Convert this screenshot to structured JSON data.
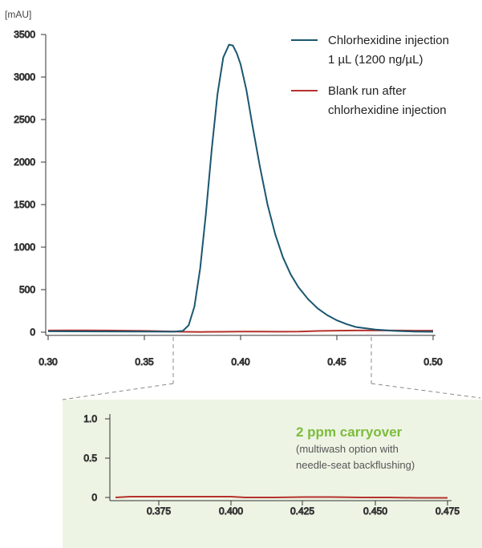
{
  "colors": {
    "injection": "#1b5670",
    "blank": "#b5322b",
    "callout_title": "#7cbc3d",
    "inset_bg": "#eef4e4",
    "axis": "#333333",
    "connector": "#888888"
  },
  "chart_data": [
    {
      "type": "line",
      "title": "",
      "unit_label": "[mAU]",
      "xlim": [
        0.3,
        0.5
      ],
      "ylim": [
        -30,
        3500
      ],
      "xticks": [
        "0.30",
        "0.35",
        "0.40",
        "0.45",
        "0.50"
      ],
      "yticks": [
        "0",
        "500",
        "1000",
        "1500",
        "2000",
        "2500",
        "3000",
        "3500"
      ],
      "legend": {
        "placement": "top-right",
        "entries": [
          {
            "line1": "Chlorhexidine injection",
            "line2": "1 µL (1200 ng/µL)"
          },
          {
            "line1": "Blank run after",
            "line2": "chlorhexidine injection"
          }
        ]
      },
      "series": [
        {
          "name": "Chlorhexidine injection 1 µL (1200 ng/µL)",
          "x": [
            0.3,
            0.35,
            0.365,
            0.37,
            0.373,
            0.376,
            0.379,
            0.382,
            0.385,
            0.388,
            0.391,
            0.394,
            0.396,
            0.398,
            0.4,
            0.403,
            0.406,
            0.41,
            0.414,
            0.418,
            0.422,
            0.426,
            0.43,
            0.435,
            0.44,
            0.445,
            0.45,
            0.455,
            0.46,
            0.47,
            0.48,
            0.49,
            0.5
          ],
          "y": [
            10,
            8,
            6,
            15,
            80,
            300,
            750,
            1400,
            2150,
            2800,
            3230,
            3380,
            3370,
            3280,
            3150,
            2850,
            2450,
            1950,
            1500,
            1150,
            880,
            680,
            530,
            390,
            280,
            200,
            140,
            95,
            60,
            30,
            15,
            8,
            5
          ]
        },
        {
          "name": "Blank run after chlorhexidine injection",
          "x": [
            0.3,
            0.31,
            0.32,
            0.33,
            0.34,
            0.35,
            0.36,
            0.37,
            0.38,
            0.39,
            0.4,
            0.41,
            0.42,
            0.43,
            0.44,
            0.45,
            0.46,
            0.47,
            0.48,
            0.49,
            0.5
          ],
          "y": [
            20,
            22,
            22,
            20,
            18,
            15,
            10,
            5,
            3,
            5,
            8,
            7,
            6,
            7,
            14,
            18,
            20,
            20,
            20,
            18,
            18
          ]
        }
      ]
    },
    {
      "type": "line",
      "title": "",
      "xlim": [
        0.36,
        0.475
      ],
      "ylim": [
        -0.1,
        1.05
      ],
      "xticks": [
        "0.375",
        "0.400",
        "0.425",
        "0.450",
        "0.475"
      ],
      "yticks": [
        "0",
        "0.5",
        "1.0"
      ],
      "annotation": {
        "title": "2 ppm carryover",
        "line1": "(multiwash option with",
        "line2": "needle-seat backflushing)"
      },
      "series": [
        {
          "name": "Blank run after chlorhexidine injection",
          "x": [
            0.36,
            0.365,
            0.375,
            0.385,
            0.395,
            0.4,
            0.405,
            0.415,
            0.425,
            0.435,
            0.445,
            0.455,
            0.465,
            0.475
          ],
          "y": [
            0.0,
            0.01,
            0.01,
            0.01,
            0.01,
            0.01,
            0.0,
            0.0,
            0.005,
            0.005,
            0.0,
            0.0,
            -0.005,
            -0.005
          ]
        }
      ]
    }
  ]
}
